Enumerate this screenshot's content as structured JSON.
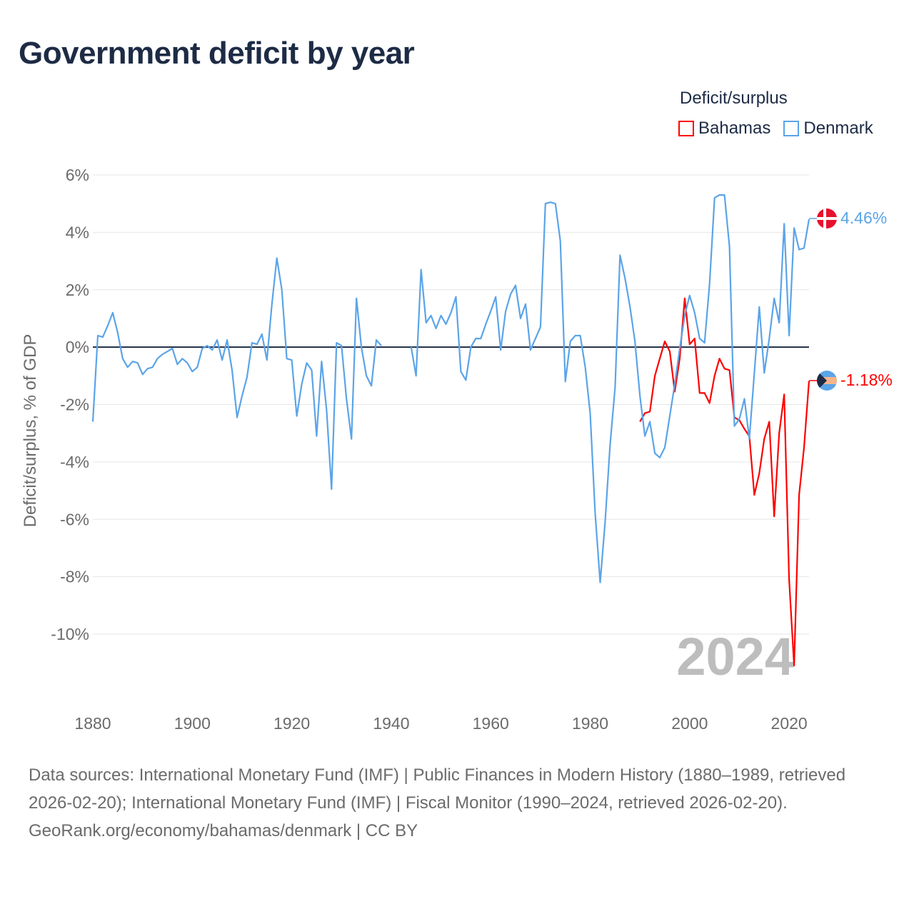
{
  "title": "Government deficit by year",
  "legend": {
    "title": "Deficit/surplus",
    "items": [
      {
        "label": "Bahamas",
        "color": "#ff0000"
      },
      {
        "label": "Denmark",
        "color": "#5ba4e8"
      }
    ]
  },
  "watermark_year": "2024",
  "end_labels": {
    "denmark": "4.46%",
    "bahamas": "-1.18%"
  },
  "footer": {
    "sources": "Data sources: International Monetary Fund (IMF) | Public Finances in Modern History (1880–1989, retrieved 2026-02-20); International Monetary Fund (IMF) | Fiscal Monitor (1990–2024, retrieved 2026-02-20).",
    "credit": "GeoRank.org/economy/bahamas/denmark | CC BY"
  },
  "chart_data": {
    "type": "line",
    "title": "Government deficit by year",
    "xlabel": "",
    "ylabel": "Deficit/surplus, % of GDP",
    "xlim": [
      1880,
      2024
    ],
    "ylim": [
      -12,
      6
    ],
    "x_ticks": [
      1880,
      1900,
      1920,
      1940,
      1960,
      1980,
      2000,
      2020
    ],
    "x_tick_labels": [
      "1880",
      "1900",
      "1920",
      "1940",
      "1960",
      "1980",
      "2000",
      "2020"
    ],
    "y_ticks": [
      6,
      4,
      2,
      0,
      -2,
      -4,
      -6,
      -8,
      -10
    ],
    "y_tick_labels": [
      "6%",
      "4%",
      "2%",
      "0%",
      "-2%",
      "-4%",
      "-6%",
      "-8%",
      "-10%"
    ],
    "grid": true,
    "legend_position": "top-right",
    "series": [
      {
        "name": "Denmark",
        "color": "#5ba4e8",
        "start_year": 1880,
        "values": [
          -2.6,
          0.4,
          0.35,
          0.75,
          1.2,
          0.5,
          -0.4,
          -0.7,
          -0.5,
          -0.55,
          -0.95,
          -0.75,
          -0.7,
          -0.4,
          -0.25,
          -0.15,
          -0.05,
          -0.6,
          -0.4,
          -0.55,
          -0.85,
          -0.7,
          -0.05,
          0.05,
          -0.1,
          0.25,
          -0.45,
          0.25,
          -0.8,
          -2.45,
          -1.7,
          -1.05,
          0.15,
          0.1,
          0.45,
          -0.45,
          1.5,
          3.1,
          2.0,
          -0.4,
          -0.45,
          -2.4,
          -1.3,
          -0.55,
          -0.8,
          -3.1,
          -0.5,
          -2.2,
          -4.95,
          0.15,
          0.05,
          -1.8,
          -3.2,
          1.7,
          0.0,
          -1.0,
          -1.35,
          0.25,
          0.05,
          null,
          null,
          null,
          null,
          null,
          0.0,
          -1.0,
          2.7,
          0.85,
          1.1,
          0.65,
          1.1,
          0.8,
          1.2,
          1.75,
          -0.85,
          -1.15,
          0.0,
          0.3,
          0.3,
          0.8,
          1.25,
          1.75,
          -0.1,
          1.25,
          1.85,
          2.15,
          1.0,
          1.5,
          -0.1,
          0.3,
          0.7,
          5.0,
          5.05,
          5.0,
          3.7,
          -1.2,
          0.2,
          0.4,
          0.4,
          -0.7,
          -2.3,
          -5.8,
          -8.2,
          -6.1,
          -3.4,
          -1.4,
          3.2,
          2.4,
          1.4,
          0.2,
          -1.7,
          -3.1,
          -2.6,
          -3.7,
          -3.85,
          -3.5,
          -2.4,
          -1.3,
          -0.05,
          1.1,
          1.8,
          1.2,
          0.3,
          0.15,
          2.2,
          5.2,
          5.3,
          5.3,
          3.5,
          -2.75,
          -2.5,
          -1.8,
          -3.2,
          -0.9,
          1.4,
          -0.9,
          0.3,
          1.7,
          0.85,
          4.3,
          0.4,
          4.15,
          3.4,
          3.45,
          4.46
        ]
      },
      {
        "name": "Bahamas",
        "color": "#ff0000",
        "start_year": 1990,
        "values": [
          -2.6,
          -2.3,
          -2.25,
          -1.0,
          -0.4,
          0.2,
          -0.15,
          -1.55,
          -0.4,
          1.7,
          0.1,
          0.3,
          -1.6,
          -1.6,
          -1.95,
          -1.0,
          -0.4,
          -0.75,
          -0.8,
          -2.45,
          -2.55,
          -2.85,
          -3.1,
          -5.15,
          -4.4,
          -3.2,
          -2.6,
          -5.9,
          -3.0,
          -1.65,
          -8.1,
          -11.1,
          -5.15,
          -3.5,
          -1.18
        ]
      }
    ]
  }
}
